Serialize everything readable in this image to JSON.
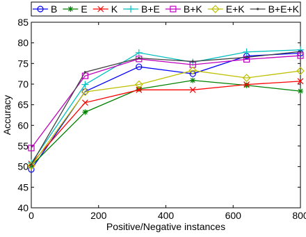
{
  "chart_data": {
    "type": "line",
    "title": "",
    "xlabel": "Positive/Negative instances",
    "ylabel": "Accuracy",
    "xlim": [
      0,
      800
    ],
    "ylim": [
      40,
      85
    ],
    "xticks": [
      "0",
      "200",
      "400",
      "600",
      "800"
    ],
    "yticks": [
      "40",
      "45",
      "50",
      "55",
      "60",
      "65",
      "70",
      "75",
      "80",
      "85"
    ],
    "grid": false,
    "legend_position": "top",
    "x": [
      0,
      160,
      320,
      480,
      640,
      800
    ],
    "series": [
      {
        "name": "B",
        "color": "#0000ff",
        "marker": "circle",
        "values": [
          49.3,
          68.2,
          74.2,
          72.5,
          76.8,
          77.5
        ]
      },
      {
        "name": "E",
        "color": "#008000",
        "marker": "star",
        "values": [
          50.2,
          63.2,
          68.8,
          70.9,
          69.7,
          68.3
        ]
      },
      {
        "name": "K",
        "color": "#ff0000",
        "marker": "x",
        "values": [
          50.7,
          65.5,
          68.6,
          68.6,
          69.9,
          70.7
        ]
      },
      {
        "name": "B+E",
        "color": "#00bfbf",
        "marker": "plus",
        "values": [
          50.9,
          69.9,
          77.6,
          75.3,
          77.8,
          78.3
        ]
      },
      {
        "name": "B+K",
        "color": "#bf00bf",
        "marker": "square",
        "values": [
          54.5,
          72.0,
          76.1,
          74.7,
          76.0,
          76.9
        ]
      },
      {
        "name": "E+K",
        "color": "#bfbf00",
        "marker": "diamond",
        "values": [
          50.2,
          68.1,
          69.9,
          73.3,
          71.5,
          73.2
        ]
      },
      {
        "name": "B+E+K",
        "color": "#404040",
        "marker": "dot",
        "values": [
          50.5,
          72.9,
          76.3,
          75.5,
          76.5,
          77.9
        ]
      }
    ]
  }
}
